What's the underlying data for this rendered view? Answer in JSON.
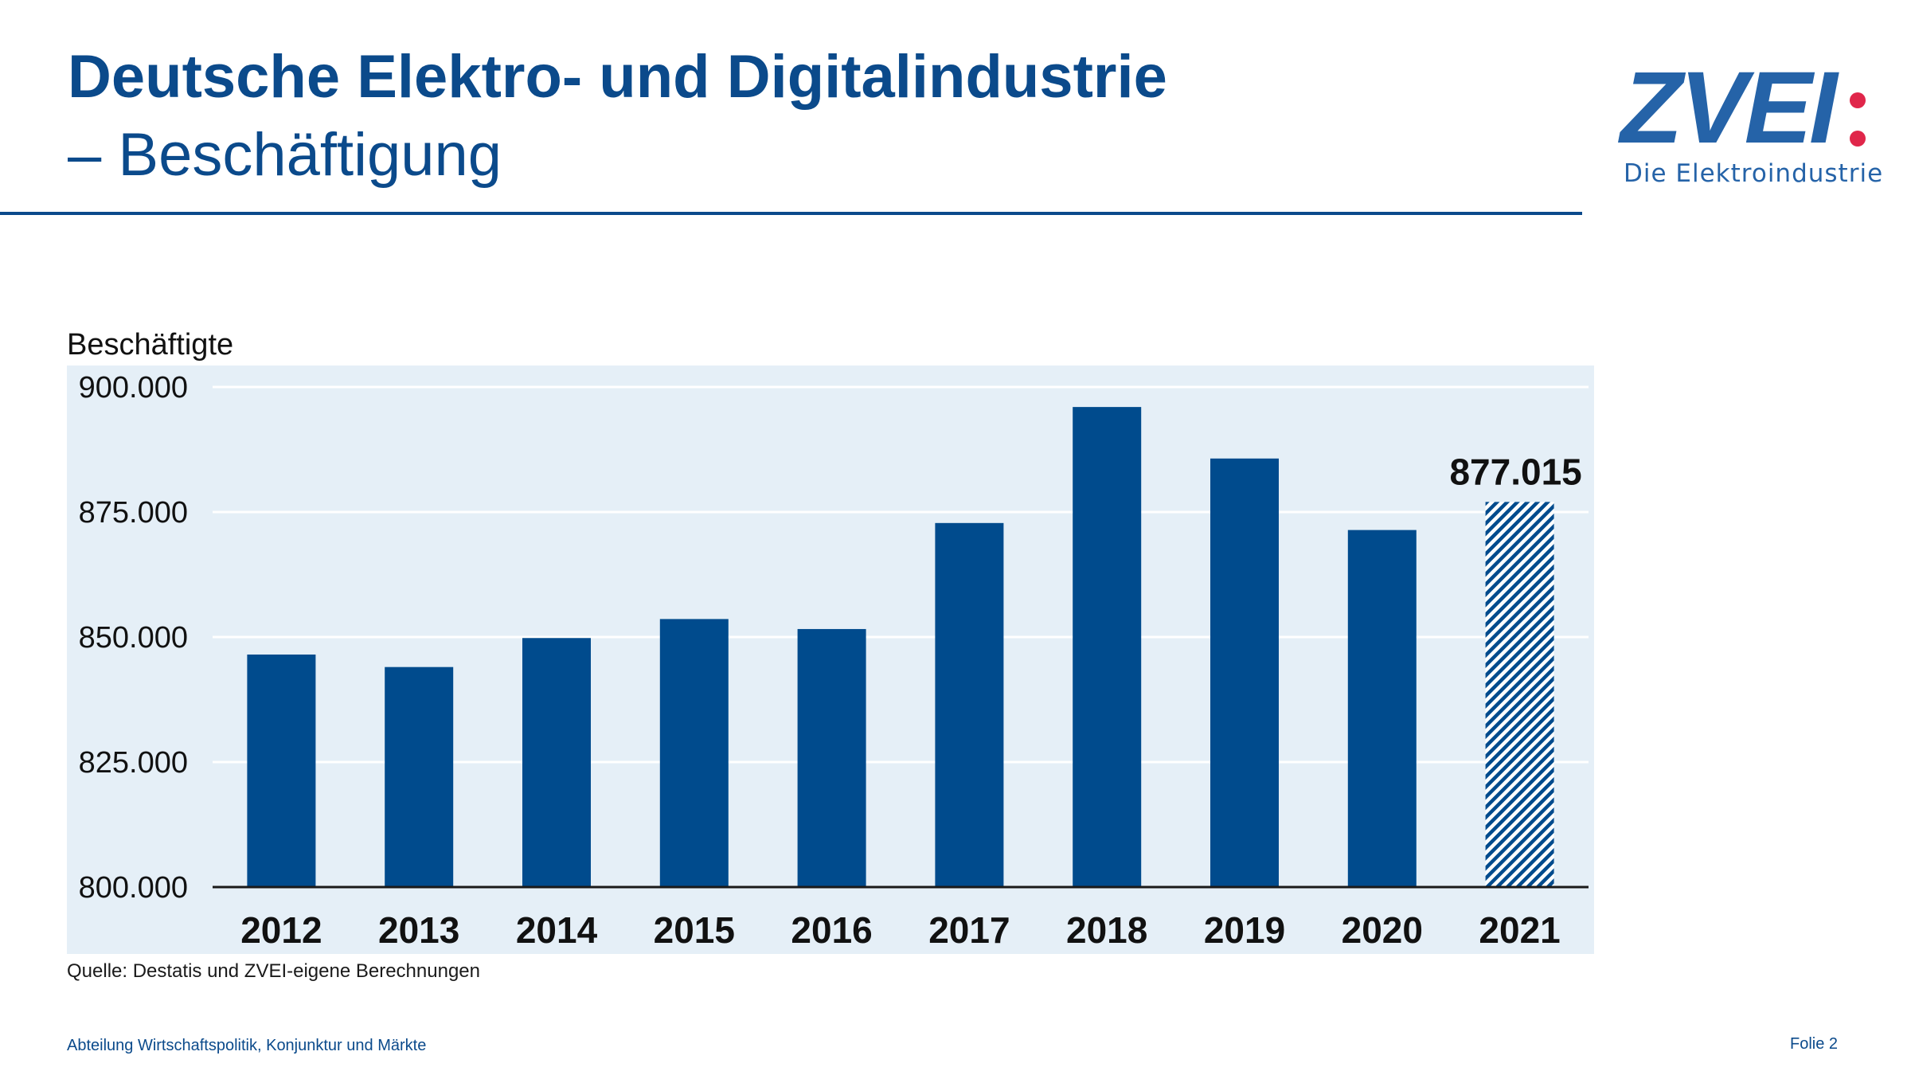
{
  "header": {
    "title_line1": "Deutsche Elektro- und Digitalindustrie",
    "title_line2": "– Beschäftigung"
  },
  "logo": {
    "wordmark": "ZVEI",
    "tagline": "Die Elektroindustrie",
    "brand_color": "#2563a8",
    "accent_color": "#e0264a"
  },
  "chart_data": {
    "type": "bar",
    "ylabel": "Beschäftigte",
    "categories": [
      "2012",
      "2013",
      "2014",
      "2015",
      "2016",
      "2017",
      "2018",
      "2019",
      "2020",
      "2021"
    ],
    "values": [
      846500,
      844000,
      849800,
      853600,
      851600,
      872800,
      896000,
      885700,
      871400,
      877015
    ],
    "estimated_categories": [
      "2021"
    ],
    "annotations": [
      {
        "category": "2021",
        "label": "877.015"
      }
    ],
    "ylim": [
      800000,
      905000
    ],
    "yticks": [
      800000,
      825000,
      850000,
      875000,
      900000
    ],
    "ytick_labels": [
      "800.000",
      "825.000",
      "850.000",
      "875.000",
      "900.000"
    ],
    "grid": true,
    "bar_color": "#004b8d",
    "plot_background": "#e5eff7"
  },
  "source": "Quelle: Destatis und ZVEI-eigene Berechnungen",
  "footer": {
    "department": "Abteilung Wirtschaftspolitik, Konjunktur und Märkte",
    "page": "Folie 2"
  }
}
